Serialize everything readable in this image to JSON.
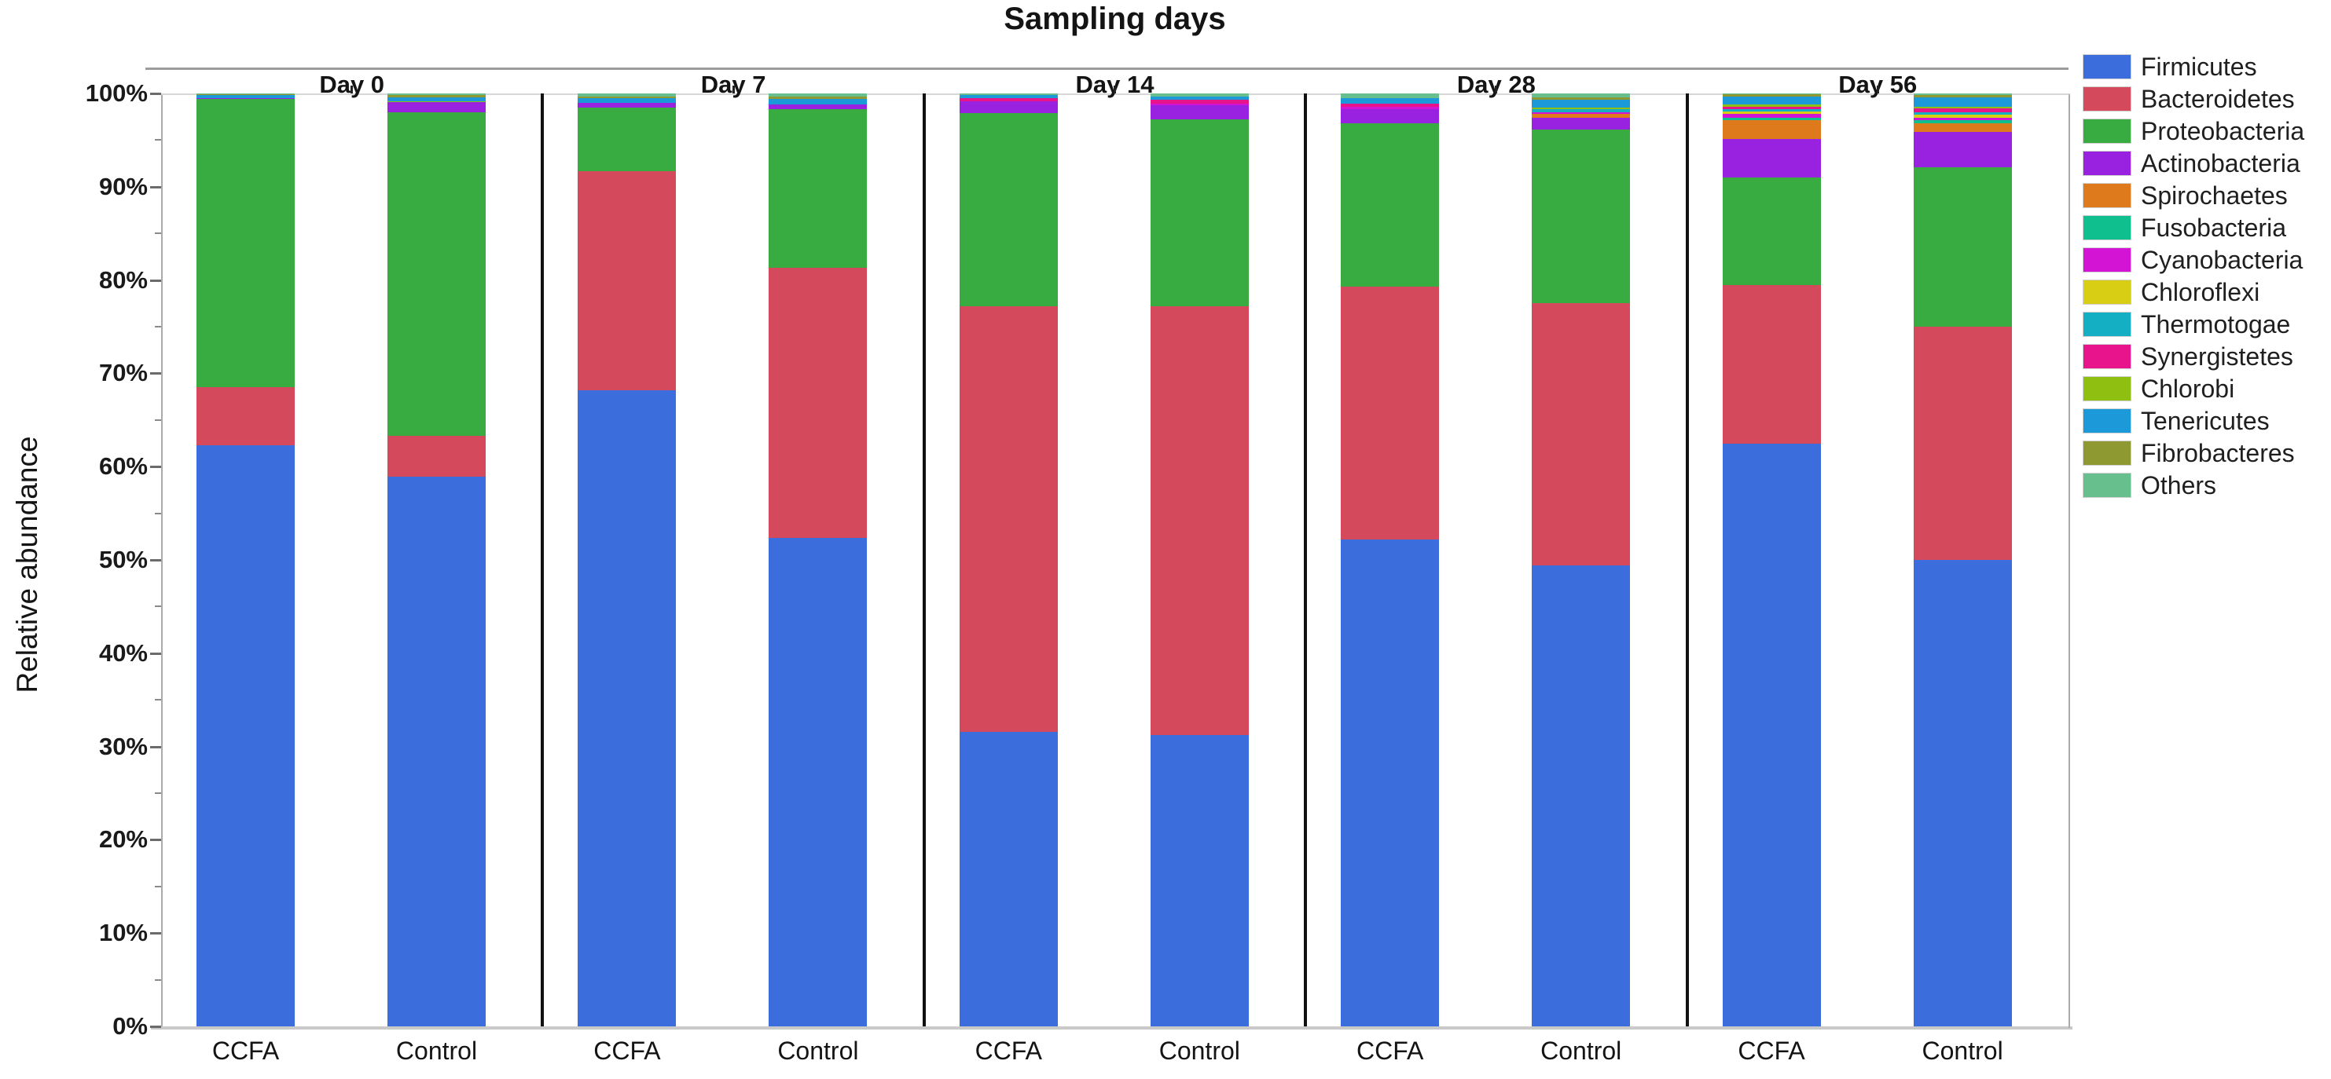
{
  "title": "Sampling days",
  "y_axis": {
    "label": "Relative abundance",
    "tick_labels": [
      "0%",
      "10%",
      "20%",
      "30%",
      "40%",
      "50%",
      "60%",
      "70%",
      "80%",
      "90%",
      "100%"
    ]
  },
  "chart_data": {
    "type": "bar",
    "stacked": true,
    "title": "Sampling days",
    "xlabel": "",
    "ylabel": "Relative abundance",
    "ylim": [
      0,
      100
    ],
    "unit": "percent",
    "grid": false,
    "legend_position": "right",
    "groups": [
      "Day 0",
      "Day 7",
      "Day 14",
      "Day 28",
      "Day 56"
    ],
    "series": [
      {
        "name": "Firmicutes",
        "color": "#3B6EDC"
      },
      {
        "name": "Bacteroidetes",
        "color": "#D4495C"
      },
      {
        "name": "Proteobacteria",
        "color": "#38AC40"
      },
      {
        "name": "Actinobacteria",
        "color": "#9922E0"
      },
      {
        "name": "Spirochaetes",
        "color": "#DE7A1C"
      },
      {
        "name": "Fusobacteria",
        "color": "#10BF8E"
      },
      {
        "name": "Cyanobacteria",
        "color": "#D414D4"
      },
      {
        "name": "Chloroflexi",
        "color": "#D8CE14"
      },
      {
        "name": "Thermotogae",
        "color": "#14AFC2"
      },
      {
        "name": "Synergistetes",
        "color": "#E8148C"
      },
      {
        "name": "Chlorobi",
        "color": "#8FC011"
      },
      {
        "name": "Tenericutes",
        "color": "#1B99D8"
      },
      {
        "name": "Fibrobacteres",
        "color": "#8E9932"
      },
      {
        "name": "Others",
        "color": "#66BF8D"
      }
    ],
    "bars": [
      {
        "group": "Day 0",
        "label": "CCFA",
        "values": [
          62.3,
          6.2,
          30.9,
          0.1,
          0,
          0,
          0,
          0,
          0,
          0,
          0,
          0.3,
          0.1,
          0.1
        ]
      },
      {
        "group": "Day 0",
        "label": "Control",
        "values": [
          58.9,
          4.4,
          34.7,
          1.1,
          0,
          0,
          0,
          0,
          0,
          0,
          0.1,
          0.4,
          0.2,
          0.2
        ]
      },
      {
        "group": "Day 7",
        "label": "CCFA",
        "values": [
          68.2,
          23.5,
          6.8,
          0.5,
          0,
          0,
          0,
          0,
          0,
          0,
          0,
          0.5,
          0.2,
          0.3
        ]
      },
      {
        "group": "Day 7",
        "label": "Control",
        "values": [
          52.4,
          28.9,
          17.0,
          0.5,
          0,
          0,
          0,
          0,
          0,
          0,
          0,
          0.6,
          0.3,
          0.3
        ]
      },
      {
        "group": "Day 14",
        "label": "CCFA",
        "values": [
          31.6,
          45.6,
          20.7,
          1.3,
          0,
          0,
          0,
          0,
          0,
          0.3,
          0,
          0.3,
          0,
          0.2
        ]
      },
      {
        "group": "Day 14",
        "label": "Control",
        "values": [
          31.2,
          46.0,
          20.0,
          1.5,
          0,
          0,
          0.2,
          0,
          0,
          0.4,
          0,
          0.4,
          0,
          0.3
        ]
      },
      {
        "group": "Day 28",
        "label": "CCFA",
        "values": [
          52.2,
          27.1,
          17.5,
          1.5,
          0,
          0,
          0.3,
          0,
          0,
          0.3,
          0,
          0.6,
          0,
          0.5
        ]
      },
      {
        "group": "Day 28",
        "label": "Control",
        "values": [
          49.4,
          28.1,
          18.6,
          1.3,
          0.4,
          0,
          0.2,
          0,
          0.3,
          0,
          0.2,
          0.8,
          0.3,
          0.4
        ]
      },
      {
        "group": "Day 56",
        "label": "CCFA",
        "values": [
          62.5,
          17.0,
          11.5,
          4.1,
          2.0,
          0.3,
          0.4,
          0.3,
          0.2,
          0.3,
          0.2,
          0.9,
          0.2,
          0.1
        ]
      },
      {
        "group": "Day 56",
        "label": "Control",
        "values": [
          50.0,
          25.0,
          17.1,
          3.8,
          0.9,
          0.3,
          0.3,
          0.3,
          0.3,
          0.4,
          0.2,
          1.0,
          0.2,
          0.2
        ]
      }
    ]
  }
}
